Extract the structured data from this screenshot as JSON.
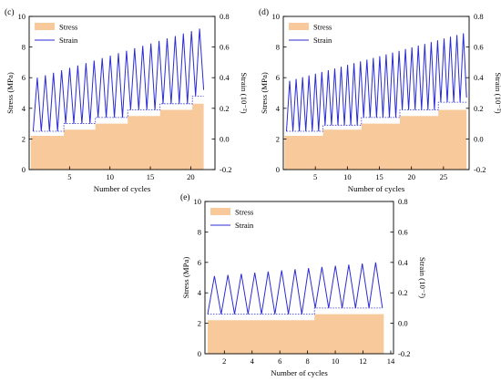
{
  "colors": {
    "stress_fill": "#f8c99b",
    "strain_line": "#2b2bd6",
    "axis": "#000000",
    "text": "#000000"
  },
  "chart_data": [
    {
      "panel": "(c)",
      "type": "area",
      "xlabel": "Number of cycles",
      "ylabel_left": "Stress (MPa)",
      "ylabel_right": "Strain (10⁻²)",
      "xlim": [
        0,
        23
      ],
      "ylim_left": [
        0,
        10
      ],
      "ylim_right": [
        -0.2,
        0.8
      ],
      "xticks": [
        5,
        10,
        15,
        20
      ],
      "yticks_left": [
        0,
        2,
        4,
        6,
        8,
        10
      ],
      "yticks_right": [
        -0.2,
        0.0,
        0.2,
        0.4,
        0.6,
        0.8
      ],
      "legend": {
        "position": "top-left",
        "entries": [
          "Stress",
          "Strain"
        ]
      },
      "grid": false,
      "series": [
        {
          "name": "Stress",
          "axis": "left",
          "style": "stepped-area",
          "steps": [
            {
              "x_start": 0.2,
              "x_end": 4.3,
              "value": 2.2
            },
            {
              "x_start": 4.3,
              "x_end": 8.2,
              "value": 2.6
            },
            {
              "x_start": 8.2,
              "x_end": 12.2,
              "value": 3.0
            },
            {
              "x_start": 12.2,
              "x_end": 16.2,
              "value": 3.5
            },
            {
              "x_start": 16.2,
              "x_end": 20.2,
              "value": 3.9
            },
            {
              "x_start": 20.2,
              "x_end": 21.6,
              "value": 4.3
            }
          ]
        },
        {
          "name": "Strain",
          "axis": "right",
          "style": "zigzag",
          "cycles": 21,
          "x_start": 0.5,
          "x_end": 21.6,
          "peak_start": 0.4,
          "peak_end": 0.72,
          "valley_steps": [
            {
              "x_start": 0.5,
              "x_end": 4.3,
              "value": 0.05
            },
            {
              "x_start": 4.3,
              "x_end": 8.2,
              "value": 0.1
            },
            {
              "x_start": 8.2,
              "x_end": 12.2,
              "value": 0.14
            },
            {
              "x_start": 12.2,
              "x_end": 16.2,
              "value": 0.19
            },
            {
              "x_start": 16.2,
              "x_end": 20.2,
              "value": 0.23
            },
            {
              "x_start": 20.2,
              "x_end": 21.6,
              "value": 0.28
            }
          ],
          "end_value": 0.32
        }
      ]
    },
    {
      "panel": "(d)",
      "type": "area",
      "xlabel": "Number of cycles",
      "ylabel_left": "Stress (MPa)",
      "ylabel_right": "Strain (10⁻²)",
      "xlim": [
        0,
        29
      ],
      "ylim_left": [
        0,
        10
      ],
      "ylim_right": [
        -0.2,
        0.8
      ],
      "xticks": [
        5,
        10,
        15,
        20,
        25
      ],
      "yticks_left": [
        0,
        2,
        4,
        6,
        8,
        10
      ],
      "yticks_right": [
        -0.2,
        0.0,
        0.2,
        0.4,
        0.6,
        0.8
      ],
      "legend": {
        "position": "top-left",
        "entries": [
          "Stress",
          "Strain"
        ]
      },
      "grid": false,
      "series": [
        {
          "name": "Stress",
          "axis": "left",
          "style": "stepped-area",
          "steps": [
            {
              "x_start": 0.2,
              "x_end": 6.2,
              "value": 2.2
            },
            {
              "x_start": 6.2,
              "x_end": 12.2,
              "value": 2.6
            },
            {
              "x_start": 12.2,
              "x_end": 18.2,
              "value": 3.0
            },
            {
              "x_start": 18.2,
              "x_end": 24.2,
              "value": 3.5
            },
            {
              "x_start": 24.2,
              "x_end": 28.6,
              "value": 3.9
            }
          ]
        },
        {
          "name": "Strain",
          "axis": "right",
          "style": "zigzag",
          "cycles": 28,
          "x_start": 0.5,
          "x_end": 28.6,
          "peak_start": 0.38,
          "peak_end": 0.69,
          "valley_steps": [
            {
              "x_start": 0.5,
              "x_end": 6.2,
              "value": 0.05
            },
            {
              "x_start": 6.2,
              "x_end": 12.2,
              "value": 0.09
            },
            {
              "x_start": 12.2,
              "x_end": 18.2,
              "value": 0.14
            },
            {
              "x_start": 18.2,
              "x_end": 24.2,
              "value": 0.19
            },
            {
              "x_start": 24.2,
              "x_end": 28.6,
              "value": 0.24
            }
          ],
          "end_value": 0.27
        }
      ]
    },
    {
      "panel": "(e)",
      "type": "area",
      "xlabel": "Number of cycles",
      "ylabel_left": "Stress (MPa)",
      "ylabel_right": "Strain (10⁻²)",
      "xlim": [
        0.6,
        14.2
      ],
      "ylim_left": [
        0,
        10
      ],
      "ylim_right": [
        -0.2,
        0.8
      ],
      "xticks": [
        2,
        4,
        6,
        8,
        10,
        12,
        14
      ],
      "yticks_left": [
        0,
        2,
        4,
        6,
        8,
        10
      ],
      "yticks_right": [
        -0.2,
        0.0,
        0.2,
        0.4,
        0.6,
        0.8
      ],
      "legend": {
        "position": "top-left",
        "entries": [
          "Stress",
          "Strain"
        ]
      },
      "grid": false,
      "series": [
        {
          "name": "Stress",
          "axis": "left",
          "style": "stepped-area",
          "steps": [
            {
              "x_start": 0.8,
              "x_end": 8.5,
              "value": 2.2
            },
            {
              "x_start": 8.5,
              "x_end": 13.5,
              "value": 2.6
            }
          ]
        },
        {
          "name": "Strain",
          "axis": "right",
          "style": "zigzag",
          "cycles": 13,
          "x_start": 0.8,
          "x_end": 13.4,
          "peak_start": 0.31,
          "peak_end": 0.4,
          "valley_steps": [
            {
              "x_start": 0.8,
              "x_end": 8.5,
              "value": 0.06
            },
            {
              "x_start": 8.5,
              "x_end": 13.4,
              "value": 0.1
            }
          ],
          "end_value": 0.1
        }
      ]
    }
  ]
}
